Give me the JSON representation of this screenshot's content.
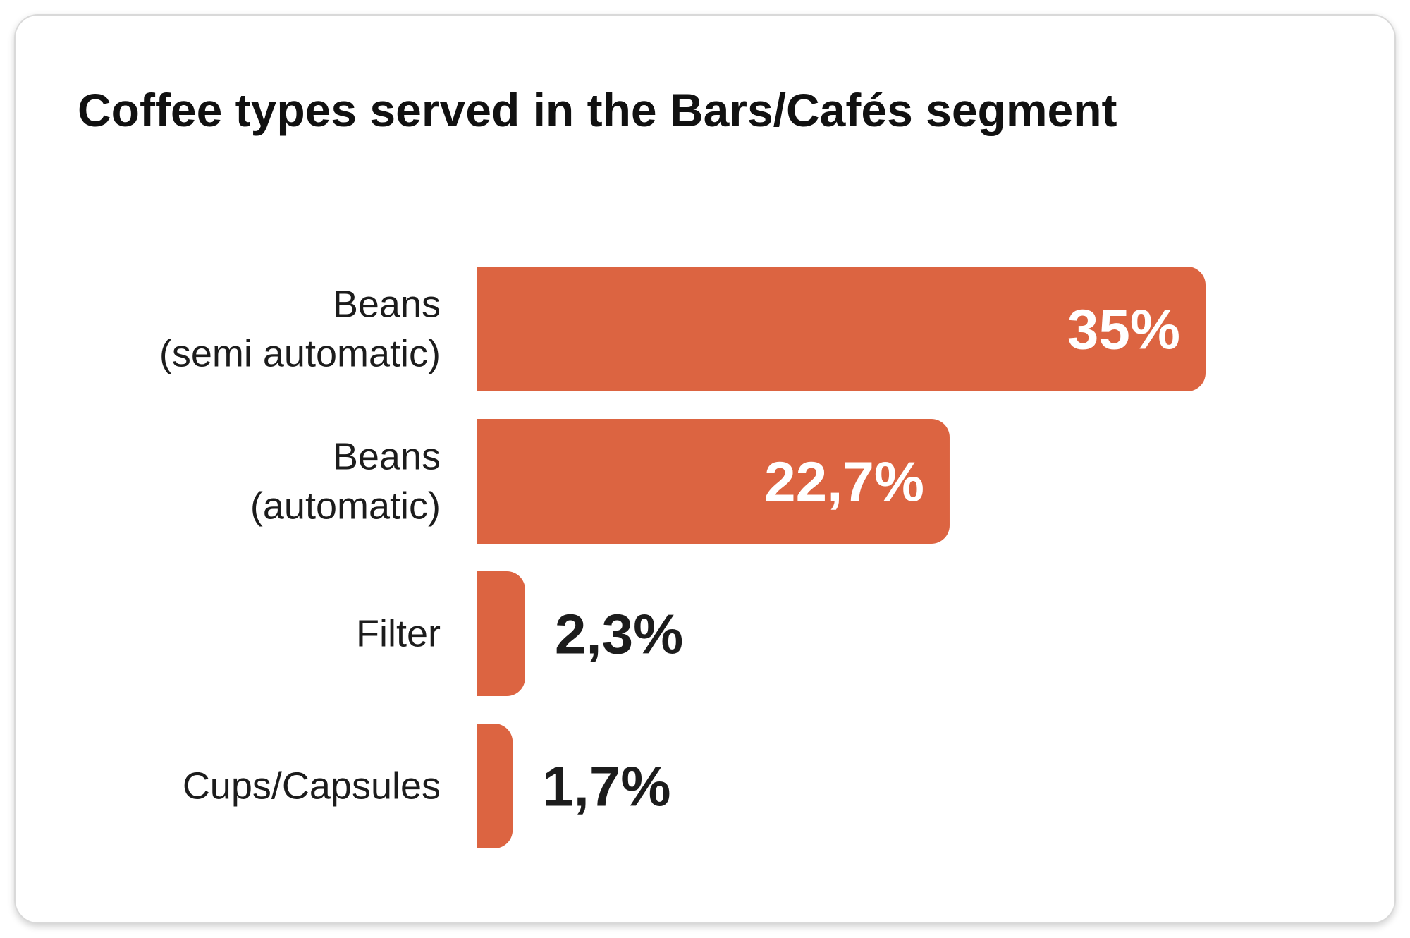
{
  "card": {
    "title": "Coffee types served in the Bars/Cafés segment"
  },
  "colors": {
    "bar": "#dc6441",
    "label_inside": "#ffffff",
    "label_outside": "#1c1c1c"
  },
  "chart_data": {
    "type": "bar",
    "orientation": "horizontal",
    "title": "Coffee types served in the Bars/Cafés segment",
    "xlabel": "",
    "ylabel": "",
    "grid": false,
    "categories": [
      [
        "Beans",
        "(semi automatic)"
      ],
      [
        "Beans",
        "(automatic)"
      ],
      [
        "Filter"
      ],
      [
        "Cups/Capsules"
      ]
    ],
    "values": [
      35,
      22.7,
      2.3,
      1.7
    ],
    "value_labels": [
      "35%",
      "22,7%",
      "2,3%",
      "1,7%"
    ],
    "xlim": [
      0,
      35
    ]
  }
}
